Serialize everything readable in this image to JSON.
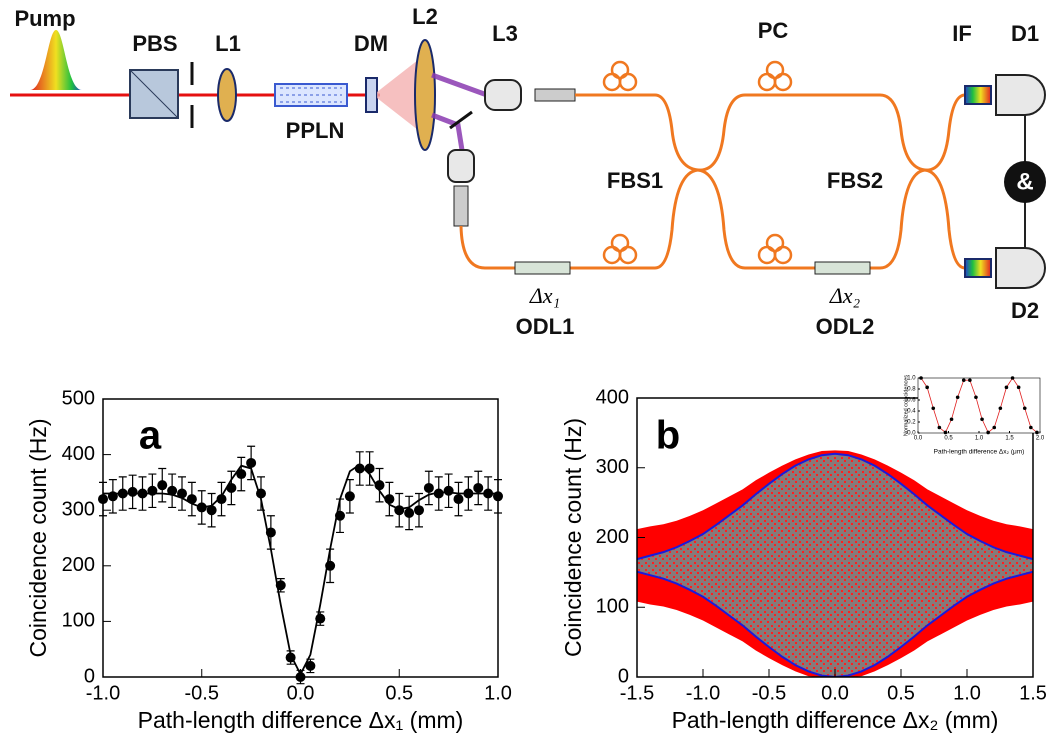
{
  "diagram": {
    "pump": "Pump",
    "pbs": "PBS",
    "l1": "L1",
    "dm": "DM",
    "l2": "L2",
    "l3": "L3",
    "pc": "PC",
    "if": "IF",
    "d1": "D1",
    "ppln": "PPLN",
    "fbs1": "FBS1",
    "fbs2": "FBS2",
    "d2": "D2",
    "dx1": "Δx₁",
    "odl1": "ODL1",
    "dx2": "Δx₂",
    "odl2": "ODL2",
    "and": "&"
  },
  "chart_data": [
    {
      "type": "errorbar",
      "panel_label": "a",
      "xlabel": "Path-length difference Δx₁ (mm)",
      "ylabel": "Coincidence count (Hz)",
      "color": "#000000",
      "x": [
        -1.0,
        -0.95,
        -0.9,
        -0.85,
        -0.8,
        -0.75,
        -0.7,
        -0.65,
        -0.6,
        -0.55,
        -0.5,
        -0.45,
        -0.4,
        -0.35,
        -0.3,
        -0.25,
        -0.2,
        -0.15,
        -0.1,
        -0.05,
        0,
        0.05,
        0.1,
        0.15,
        0.2,
        0.25,
        0.3,
        0.35,
        0.4,
        0.45,
        0.5,
        0.55,
        0.6,
        0.65,
        0.7,
        0.75,
        0.8,
        0.85,
        0.9,
        0.95,
        1.0
      ],
      "values": [
        320,
        325,
        330,
        333,
        330,
        335,
        345,
        335,
        330,
        320,
        305,
        300,
        320,
        340,
        365,
        385,
        330,
        260,
        165,
        35,
        0,
        20,
        105,
        200,
        290,
        325,
        375,
        375,
        345,
        320,
        300,
        295,
        300,
        340,
        330,
        335,
        320,
        330,
        340,
        330,
        325
      ],
      "errors": [
        30,
        30,
        30,
        30,
        30,
        30,
        30,
        30,
        30,
        30,
        30,
        30,
        30,
        30,
        30,
        30,
        30,
        30,
        12,
        12,
        12,
        12,
        12,
        30,
        30,
        30,
        30,
        30,
        30,
        30,
        30,
        30,
        30,
        30,
        30,
        30,
        30,
        30,
        30,
        30,
        30
      ],
      "fit_values": [
        330,
        330,
        330,
        330,
        330,
        330,
        330,
        328,
        322,
        312,
        305,
        308,
        325,
        355,
        380,
        375,
        320,
        230,
        130,
        40,
        5,
        40,
        130,
        230,
        320,
        370,
        382,
        365,
        335,
        310,
        302,
        305,
        318,
        328,
        332,
        332,
        330,
        330,
        330,
        330,
        330
      ],
      "xlim": [
        -1.0,
        1.0
      ],
      "ylim": [
        0,
        500
      ],
      "xticks": [
        {
          "value": -1.0,
          "label": "-1.0"
        },
        {
          "value": -0.5,
          "label": "-0.5"
        },
        {
          "value": 0,
          "label": "0.0"
        },
        {
          "value": 0.5,
          "label": "0.5"
        },
        {
          "value": 1.0,
          "label": "1.0"
        }
      ],
      "yticks": [
        0,
        100,
        200,
        300,
        400,
        500
      ]
    },
    {
      "type": "band",
      "panel_label": "b",
      "xlabel": "Path-length difference Δx₂ (mm)",
      "ylabel": "Coincidence count (Hz)",
      "cloud_color": "#ff0000",
      "fill_color": "#808080",
      "envelope_color": "#1a1adc",
      "x": [
        -1.5,
        -1.4,
        -1.3,
        -1.2,
        -1.1,
        -1.0,
        -0.9,
        -0.8,
        -0.7,
        -0.6,
        -0.5,
        -0.4,
        -0.3,
        -0.2,
        -0.1,
        0,
        0.1,
        0.2,
        0.3,
        0.4,
        0.5,
        0.6,
        0.7,
        0.8,
        0.9,
        1.0,
        1.1,
        1.2,
        1.3,
        1.4,
        1.5
      ],
      "cloud_upper": [
        212,
        216,
        219,
        224,
        231,
        239,
        249,
        259,
        269,
        282,
        293,
        303,
        312,
        319,
        324,
        325,
        324,
        319,
        312,
        303,
        293,
        282,
        269,
        259,
        249,
        239,
        231,
        224,
        219,
        216,
        212
      ],
      "cloud_lower": [
        108,
        104,
        101,
        96,
        89,
        81,
        71,
        61,
        51,
        38,
        27,
        17,
        8,
        1,
        0,
        0,
        0,
        1,
        8,
        17,
        27,
        38,
        51,
        61,
        71,
        81,
        89,
        96,
        101,
        104,
        108
      ],
      "envelope_upper": [
        169,
        174,
        179,
        186,
        195,
        205,
        218,
        232,
        246,
        262,
        277,
        291,
        303,
        312,
        318,
        320,
        318,
        312,
        303,
        291,
        277,
        262,
        246,
        232,
        218,
        205,
        195,
        186,
        179,
        174,
        169
      ],
      "envelope_lower": [
        151,
        146,
        141,
        134,
        125,
        115,
        102,
        88,
        74,
        58,
        43,
        29,
        17,
        8,
        2,
        0,
        2,
        8,
        17,
        29,
        43,
        58,
        74,
        88,
        102,
        115,
        125,
        134,
        141,
        146,
        151
      ],
      "xlim": [
        -1.5,
        1.5
      ],
      "ylim": [
        0,
        400
      ],
      "xticks": [
        {
          "value": -1.5,
          "label": "-1.5"
        },
        {
          "value": -1.0,
          "label": "-1.0"
        },
        {
          "value": -0.5,
          "label": "-0.5"
        },
        {
          "value": 0,
          "label": "0.0"
        },
        {
          "value": 0.5,
          "label": "0.5"
        },
        {
          "value": 1.0,
          "label": "1.0"
        },
        {
          "value": 1.5,
          "label": "1.5"
        }
      ],
      "yticks": [
        0,
        100,
        200,
        300,
        400
      ]
    },
    {
      "type": "inset",
      "xlabel": "Path-length difference Δx₂ (μm)",
      "ylabel": "Normalized coincidences",
      "color": "#000000",
      "line_color": "#e02020",
      "x": [
        0.05,
        0.15,
        0.25,
        0.35,
        0.45,
        0.55,
        0.65,
        0.75,
        0.85,
        0.95,
        1.05,
        1.15,
        1.25,
        1.35,
        1.45,
        1.55,
        1.65,
        1.75,
        1.85,
        1.95
      ],
      "values": [
        1.0,
        0.83,
        0.45,
        0.1,
        0.01,
        0.25,
        0.65,
        0.96,
        0.96,
        0.65,
        0.25,
        0.01,
        0.1,
        0.45,
        0.83,
        1.0,
        0.83,
        0.45,
        0.1,
        0.01
      ],
      "xlim": [
        0,
        2
      ],
      "ylim": [
        0,
        1
      ],
      "xticks": [
        {
          "value": 0,
          "label": "0.0"
        },
        {
          "value": 0.5,
          "label": "0.5"
        },
        {
          "value": 1.0,
          "label": "1.0"
        },
        {
          "value": 1.5,
          "label": "1.5"
        },
        {
          "value": 2.0,
          "label": "2.0"
        }
      ],
      "yticks": [
        {
          "value": 0,
          "label": "0.0"
        },
        {
          "value": 0.2,
          "label": "0.2"
        },
        {
          "value": 0.4,
          "label": "0.4"
        },
        {
          "value": 0.6,
          "label": "0.6"
        },
        {
          "value": 0.8,
          "label": "0.8"
        },
        {
          "value": 1.0,
          "label": "1.0"
        }
      ]
    }
  ]
}
